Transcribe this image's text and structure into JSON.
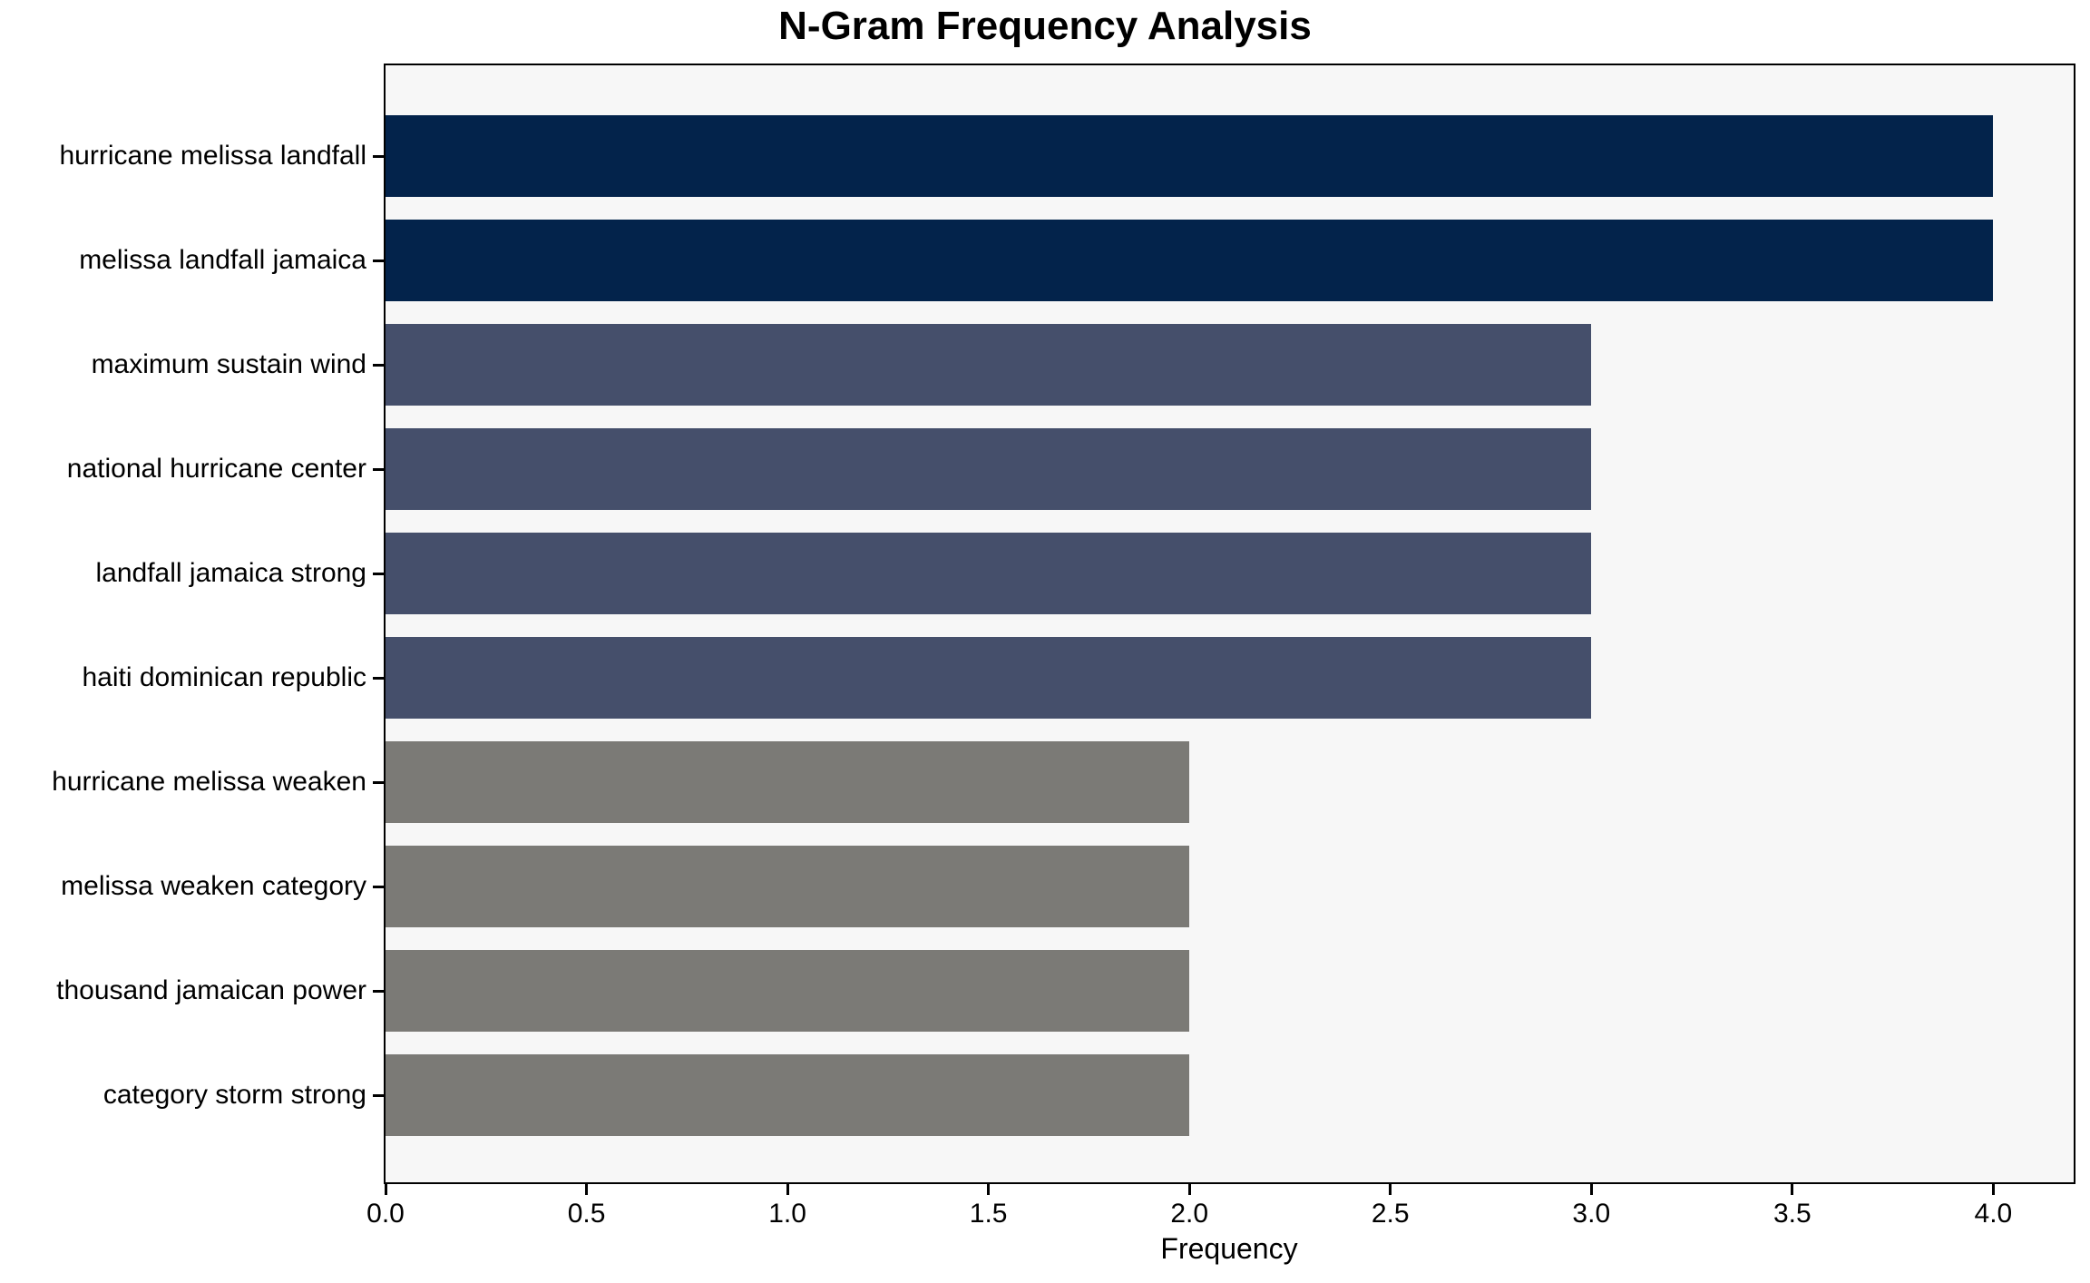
{
  "chart_data": {
    "type": "bar",
    "orientation": "horizontal",
    "title": "N-Gram Frequency Analysis",
    "xlabel": "Frequency",
    "ylabel": "",
    "categories": [
      "hurricane melissa landfall",
      "melissa landfall jamaica",
      "maximum sustain wind",
      "national hurricane center",
      "landfall jamaica strong",
      "haiti dominican republic",
      "hurricane melissa weaken",
      "melissa weaken category",
      "thousand jamaican power",
      "category storm strong"
    ],
    "values": [
      4.0,
      4.0,
      3.0,
      3.0,
      3.0,
      3.0,
      2.0,
      2.0,
      2.0,
      2.0
    ],
    "bar_colors": [
      "#03234b",
      "#03234b",
      "#454f6b",
      "#454f6b",
      "#454f6b",
      "#454f6b",
      "#7b7a76",
      "#7b7a76",
      "#7b7a76",
      "#7b7a76"
    ],
    "xlim": [
      0,
      4.2
    ],
    "xticks": [
      0,
      0.5,
      1,
      1.5,
      2,
      2.5,
      3,
      3.5,
      4
    ],
    "xtick_labels": [
      "0.0",
      "0.5",
      "1.0",
      "1.5",
      "2.0",
      "2.5",
      "3.0",
      "3.5",
      "4.0"
    ],
    "grid": false,
    "legend": null,
    "plot_background": "#f7f7f7",
    "figure_background": "#ffffff",
    "axis_color": "#000000"
  }
}
